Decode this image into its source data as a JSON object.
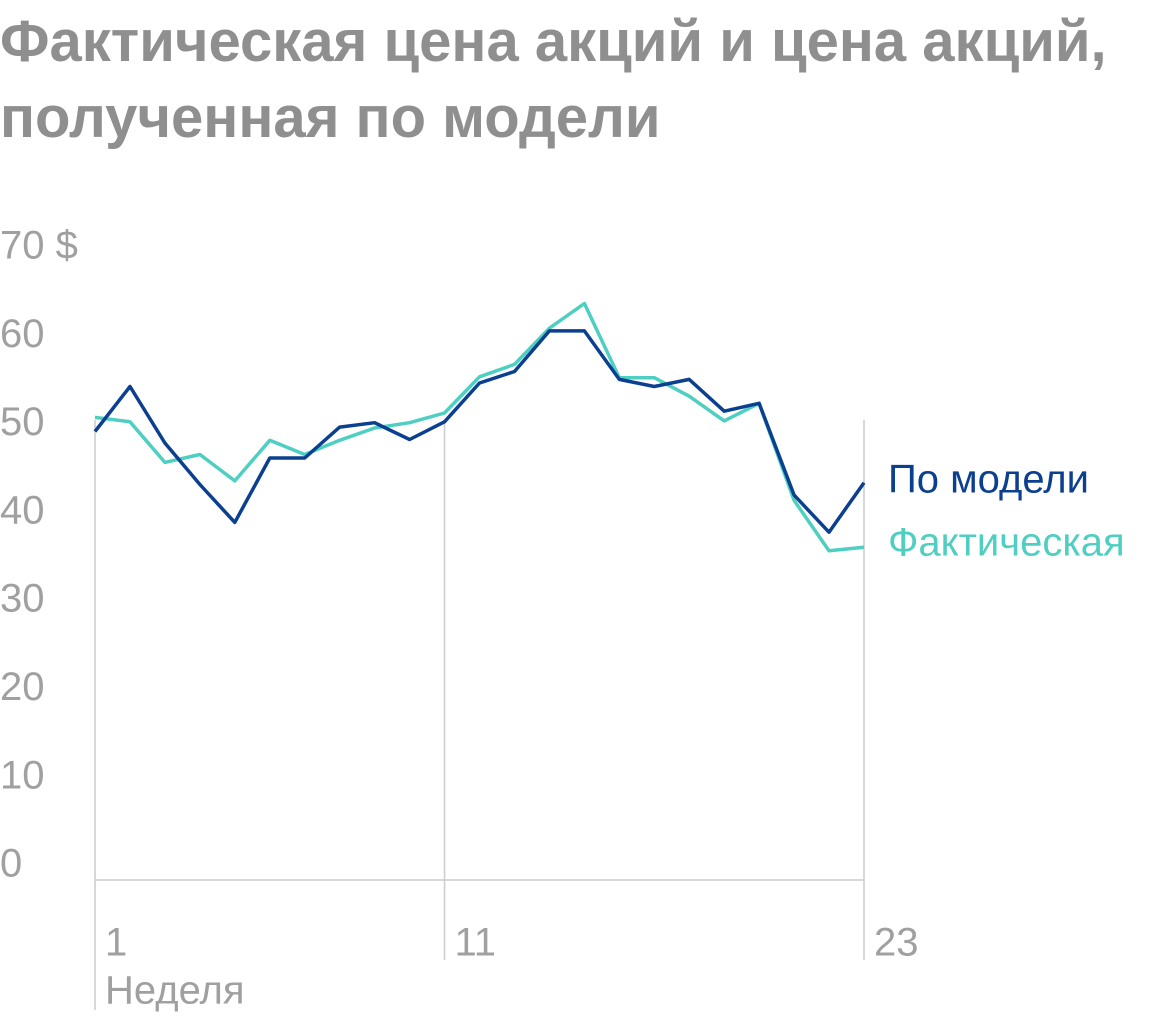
{
  "chart_data": {
    "type": "line",
    "title": "Фактическая цена акций и цена акций, полученная по модели",
    "x_label": "Неделя",
    "x": [
      1,
      2,
      3,
      4,
      5,
      6,
      7,
      8,
      9,
      10,
      11,
      12,
      13,
      14,
      15,
      16,
      17,
      18,
      19,
      20,
      21,
      22,
      23
    ],
    "xlim": [
      1,
      23
    ],
    "xticks": [
      1,
      11,
      23
    ],
    "ylim": [
      0,
      70
    ],
    "yticks": [
      0,
      10,
      20,
      30,
      40,
      50,
      60,
      {
        "value": 70,
        "label": "70 $"
      }
    ],
    "series": [
      {
        "name": "По модели",
        "color": "#0b3f8f",
        "values": [
          50.8,
          55.9,
          49.5,
          44.8,
          40.5,
          47.8,
          47.8,
          51.3,
          51.8,
          49.9,
          51.9,
          56.3,
          57.6,
          62.2,
          62.2,
          56.7,
          55.9,
          56.7,
          53.1,
          54.0,
          43.6,
          39.4,
          45.0
        ]
      },
      {
        "name": "Фактическая",
        "color": "#4fcfc1",
        "values": [
          52.4,
          51.9,
          47.3,
          48.2,
          45.2,
          49.8,
          48.2,
          49.8,
          51.2,
          51.8,
          52.9,
          57.0,
          58.4,
          62.5,
          65.3,
          56.9,
          56.9,
          54.8,
          52.0,
          54.0,
          43.0,
          37.3,
          37.7
        ]
      }
    ]
  }
}
